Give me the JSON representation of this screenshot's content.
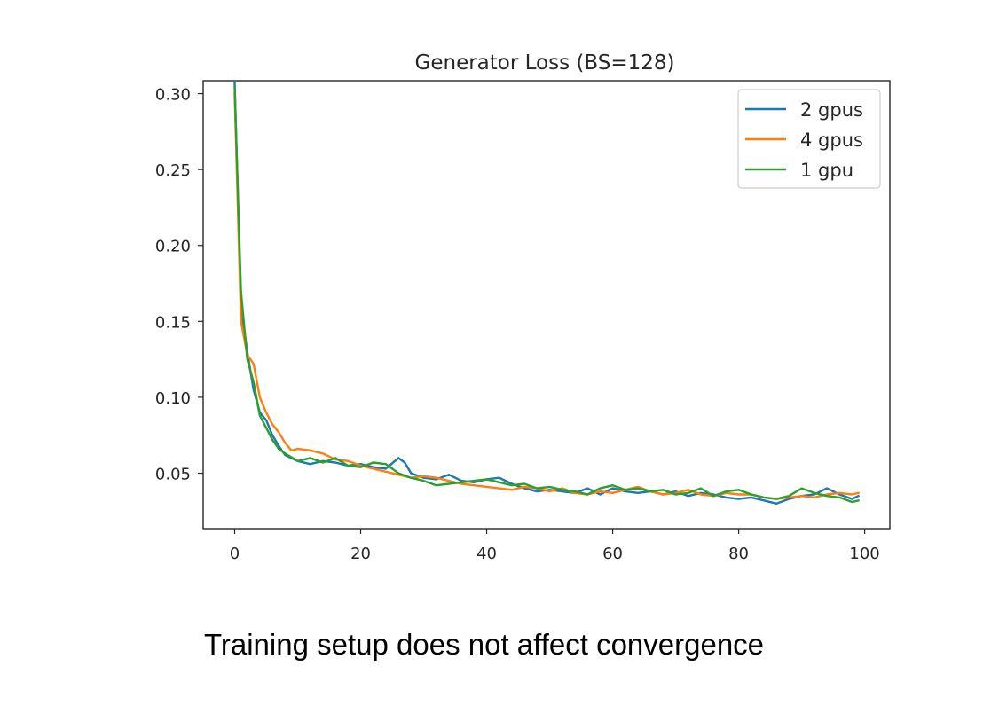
{
  "chart_data": {
    "type": "line",
    "title": "Generator Loss (BS=128)",
    "xlabel": "",
    "ylabel": "",
    "xlim": [
      -5,
      104
    ],
    "ylim": [
      0.0135,
      0.3085
    ],
    "xticks": [
      0,
      20,
      40,
      60,
      80,
      100
    ],
    "yticks": [
      0.05,
      0.1,
      0.15,
      0.2,
      0.25,
      0.3
    ],
    "ytick_labels": [
      "0.05",
      "0.10",
      "0.15",
      "0.20",
      "0.25",
      "0.30"
    ],
    "legend_position": "top-right",
    "grid": false,
    "series": [
      {
        "name": "2 gpus",
        "color": "#1f77b4",
        "x": [
          0,
          1,
          2,
          3,
          4,
          5,
          6,
          7,
          8,
          10,
          12,
          14,
          16,
          18,
          20,
          22,
          24,
          26,
          27,
          28,
          30,
          32,
          34,
          36,
          38,
          40,
          42,
          44,
          46,
          48,
          50,
          52,
          54,
          56,
          58,
          60,
          62,
          64,
          66,
          68,
          70,
          72,
          74,
          76,
          78,
          80,
          82,
          84,
          86,
          88,
          90,
          92,
          94,
          96,
          98,
          99
        ],
        "y": [
          0.307,
          0.16,
          0.13,
          0.105,
          0.09,
          0.085,
          0.075,
          0.068,
          0.062,
          0.058,
          0.056,
          0.058,
          0.057,
          0.055,
          0.056,
          0.054,
          0.053,
          0.06,
          0.057,
          0.05,
          0.047,
          0.046,
          0.049,
          0.045,
          0.044,
          0.046,
          0.047,
          0.043,
          0.04,
          0.038,
          0.039,
          0.038,
          0.037,
          0.04,
          0.036,
          0.04,
          0.038,
          0.037,
          0.038,
          0.036,
          0.038,
          0.035,
          0.037,
          0.036,
          0.034,
          0.033,
          0.034,
          0.032,
          0.03,
          0.033,
          0.035,
          0.036,
          0.04,
          0.036,
          0.033,
          0.035
        ]
      },
      {
        "name": "4 gpus",
        "color": "#ff7f0e",
        "x": [
          0,
          1,
          2,
          3,
          4,
          5,
          6,
          7,
          8,
          9,
          10,
          12,
          14,
          16,
          18,
          20,
          22,
          24,
          26,
          28,
          30,
          32,
          34,
          36,
          38,
          40,
          42,
          44,
          46,
          48,
          50,
          52,
          54,
          56,
          58,
          60,
          62,
          64,
          66,
          68,
          70,
          72,
          74,
          76,
          78,
          80,
          82,
          84,
          86,
          88,
          90,
          92,
          94,
          96,
          98,
          99
        ],
        "y": [
          0.3,
          0.15,
          0.128,
          0.122,
          0.1,
          0.09,
          0.082,
          0.077,
          0.07,
          0.065,
          0.066,
          0.065,
          0.063,
          0.059,
          0.058,
          0.055,
          0.053,
          0.051,
          0.049,
          0.047,
          0.048,
          0.047,
          0.045,
          0.043,
          0.042,
          0.041,
          0.04,
          0.039,
          0.041,
          0.04,
          0.038,
          0.04,
          0.037,
          0.036,
          0.038,
          0.037,
          0.039,
          0.041,
          0.038,
          0.036,
          0.037,
          0.039,
          0.036,
          0.035,
          0.037,
          0.036,
          0.036,
          0.034,
          0.033,
          0.034,
          0.035,
          0.034,
          0.036,
          0.037,
          0.036,
          0.037
        ]
      },
      {
        "name": "1 gpu",
        "color": "#2ca02c",
        "x": [
          0,
          1,
          2,
          3,
          4,
          5,
          6,
          7,
          8,
          10,
          12,
          14,
          16,
          18,
          20,
          22,
          24,
          26,
          28,
          30,
          32,
          34,
          36,
          38,
          40,
          42,
          44,
          46,
          48,
          50,
          52,
          54,
          56,
          58,
          60,
          62,
          64,
          66,
          68,
          70,
          72,
          74,
          76,
          78,
          80,
          82,
          84,
          86,
          88,
          90,
          92,
          94,
          96,
          98,
          99
        ],
        "y": [
          0.304,
          0.17,
          0.125,
          0.11,
          0.088,
          0.08,
          0.072,
          0.066,
          0.063,
          0.058,
          0.06,
          0.057,
          0.06,
          0.055,
          0.054,
          0.057,
          0.056,
          0.05,
          0.047,
          0.045,
          0.042,
          0.043,
          0.044,
          0.045,
          0.046,
          0.044,
          0.042,
          0.043,
          0.04,
          0.041,
          0.039,
          0.038,
          0.036,
          0.04,
          0.042,
          0.039,
          0.04,
          0.038,
          0.039,
          0.036,
          0.037,
          0.04,
          0.035,
          0.038,
          0.039,
          0.036,
          0.034,
          0.033,
          0.035,
          0.04,
          0.037,
          0.035,
          0.034,
          0.031,
          0.032
        ]
      }
    ]
  },
  "caption": "Training setup does not affect convergence"
}
